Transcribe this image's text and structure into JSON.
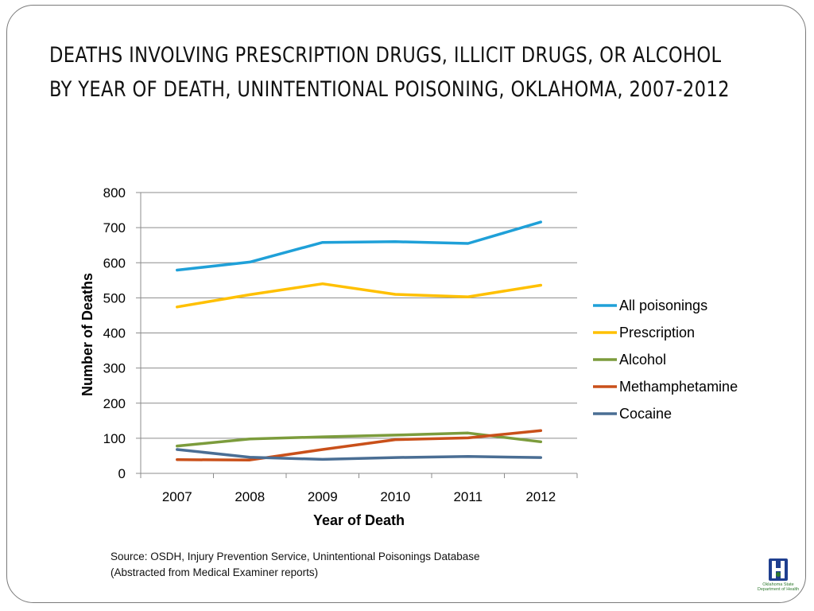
{
  "slide": {
    "title": "DEATHS INVOLVING PRESCRIPTION DRUGS, ILLICIT DRUGS, OR ALCOHOL BY YEAR OF DEATH, UNINTENTIONAL POISONING, OKLAHOMA, 2007-2012",
    "source_line1": "Source: OSDH, Injury Prevention Service, Unintentional Poisonings Database",
    "source_line2": "(Abstracted from Medical Examiner reports)",
    "logo_text": "Oklahoma State Department of Health",
    "logo_icon": "oklahoma-health-logo-icon"
  },
  "chart_data": {
    "type": "line",
    "title": "",
    "xlabel": "Year of Death",
    "ylabel": "Number of Deaths",
    "categories": [
      "2007",
      "2008",
      "2009",
      "2010",
      "2011",
      "2012"
    ],
    "ylim": [
      0,
      800
    ],
    "yticks": [
      0,
      100,
      200,
      300,
      400,
      500,
      600,
      700,
      800
    ],
    "grid": true,
    "legend_position": "right",
    "series": [
      {
        "name": "All poisonings",
        "color": "#1fa0d8",
        "values": [
          579,
          602,
          658,
          660,
          655,
          716
        ]
      },
      {
        "name": "Prescription",
        "color": "#ffc000",
        "values": [
          474,
          509,
          540,
          510,
          503,
          536
        ]
      },
      {
        "name": "Alcohol",
        "color": "#7c9c3c",
        "values": [
          78,
          98,
          104,
          109,
          115,
          90
        ]
      },
      {
        "name": "Methamphetamine",
        "color": "#c9501a",
        "values": [
          39,
          38,
          68,
          96,
          101,
          122
        ]
      },
      {
        "name": "Cocaine",
        "color": "#4a6e94",
        "values": [
          68,
          46,
          40,
          45,
          48,
          45
        ]
      }
    ]
  }
}
